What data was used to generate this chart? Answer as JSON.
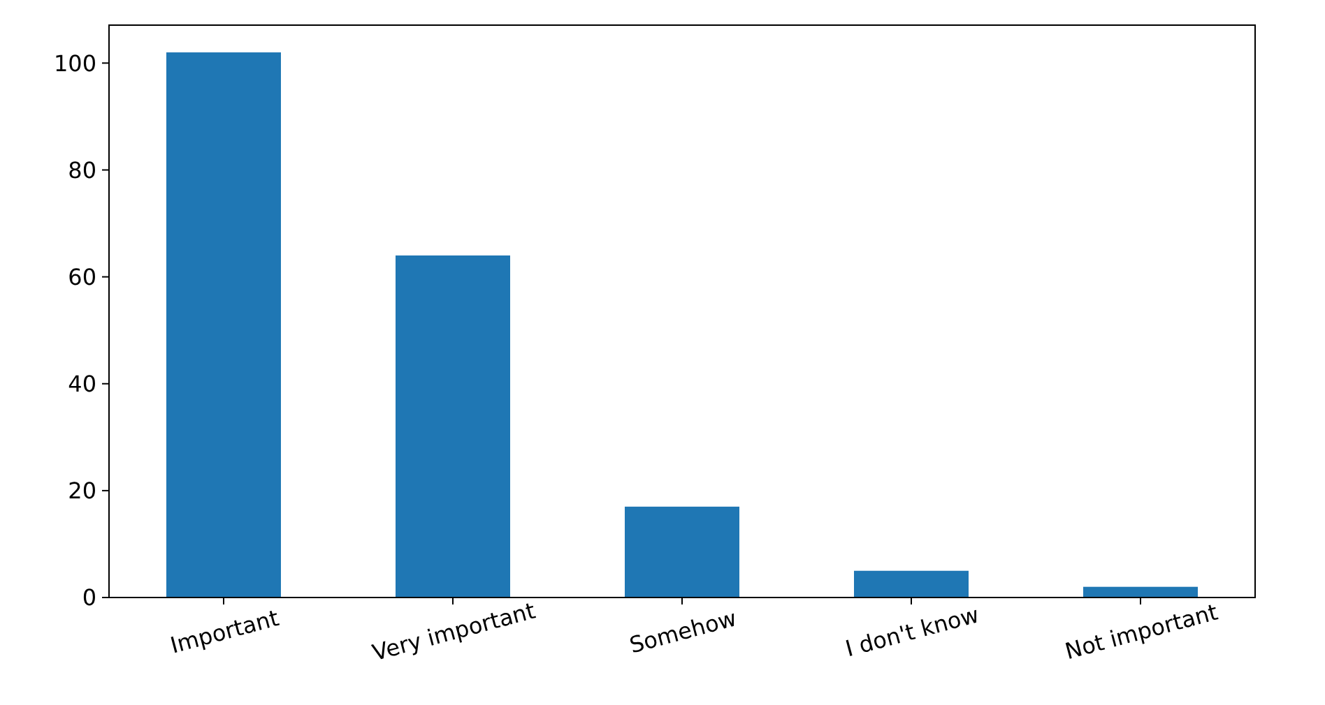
{
  "chart_data": {
    "type": "bar",
    "categories": [
      "Important",
      "Very important",
      "Somehow",
      "I don't know",
      "Not important"
    ],
    "values": [
      102,
      64,
      17,
      5,
      2
    ],
    "color": "#1f77b4",
    "ylim": [
      0,
      107.1
    ],
    "yticks": [
      0,
      20,
      40,
      60,
      80,
      100
    ],
    "grid": false
  }
}
